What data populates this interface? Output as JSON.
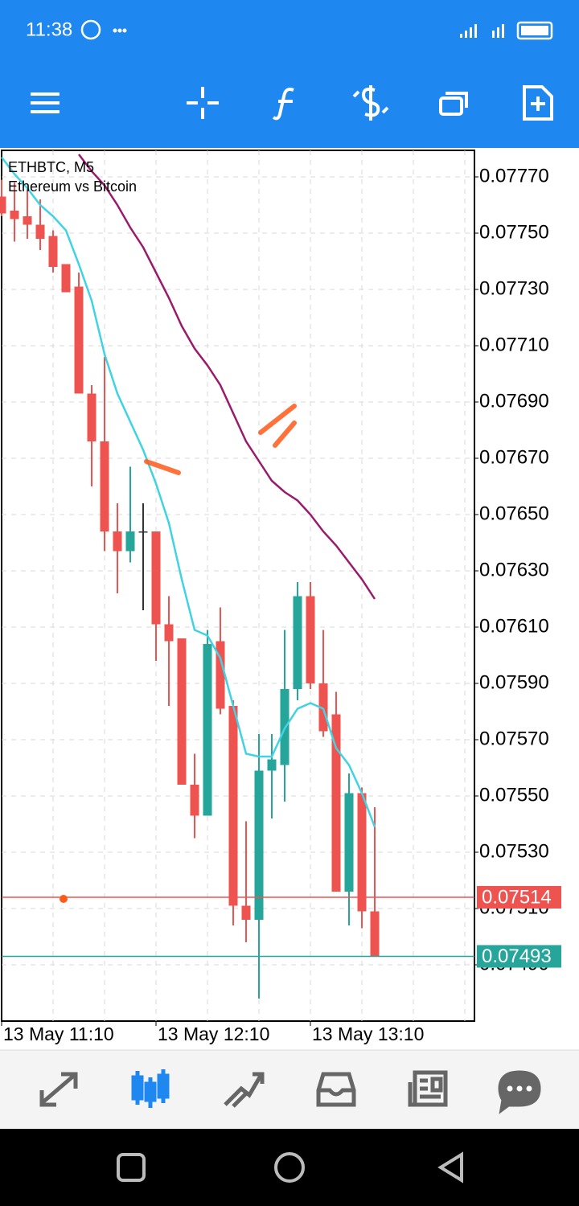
{
  "status_bar": {
    "time": "11:38"
  },
  "chart_data": {
    "type": "candlestick",
    "title": "ETHBTC, M5",
    "subtitle": "Ethereum vs Bitcoin",
    "categories": [
      "13 May 11:10",
      null,
      null,
      null,
      null,
      null,
      null,
      null,
      null,
      null,
      null,
      null,
      "13 May 12:10",
      null,
      null,
      null,
      null,
      null,
      null,
      null,
      null,
      null,
      null,
      null,
      "13 May 13:10",
      null,
      null,
      null,
      null,
      null
    ],
    "open": [
      0.07763,
      0.07758,
      0.07756,
      0.07753,
      0.07749,
      0.07739,
      0.07731,
      0.07693,
      0.07676,
      0.07644,
      0.07637,
      0.07644,
      0.07644,
      0.07611,
      0.07606,
      0.07554,
      0.07543,
      0.07605,
      0.07582,
      0.07511,
      0.07506,
      0.07559,
      0.07561,
      0.07588,
      0.07621,
      0.0759,
      0.07579,
      0.07516,
      0.07551,
      0.07509
    ],
    "high": [
      0.07769,
      0.07768,
      0.07766,
      0.07762,
      0.07751,
      0.07739,
      0.07736,
      0.07696,
      0.07706,
      0.07654,
      0.07667,
      0.07654,
      0.07644,
      0.07621,
      0.07606,
      0.07565,
      0.07609,
      0.07617,
      0.07584,
      0.07541,
      0.07572,
      0.07572,
      0.07609,
      0.07626,
      0.07626,
      0.07609,
      0.07587,
      0.07558,
      0.07553,
      0.07546
    ],
    "low": [
      0.07756,
      0.07747,
      0.07748,
      0.07744,
      0.07736,
      0.07729,
      0.07693,
      0.0766,
      0.07637,
      0.07622,
      0.07633,
      0.07616,
      0.07598,
      0.07582,
      0.07554,
      0.07535,
      0.07543,
      0.07579,
      0.07504,
      0.07498,
      0.07478,
      0.07542,
      0.07548,
      0.07584,
      0.07588,
      0.07571,
      0.07516,
      0.07504,
      0.07503,
      0.07493
    ],
    "close": [
      0.07757,
      0.07755,
      0.07753,
      0.07748,
      0.07738,
      0.07729,
      0.07693,
      0.07676,
      0.07644,
      0.07637,
      0.07644,
      0.07644,
      0.07611,
      0.07605,
      0.07554,
      0.07543,
      0.07604,
      0.07581,
      0.07511,
      0.07506,
      0.07559,
      0.07563,
      0.07588,
      0.07621,
      0.0759,
      0.07573,
      0.07516,
      0.07551,
      0.07509,
      0.07493
    ],
    "up_color": "#26a69a",
    "down_color": "#ef5350",
    "lines": [
      {
        "color": "#3fd3e3",
        "values": [
          0.07777,
          0.07771,
          0.07766,
          0.0776,
          0.07756,
          0.07751,
          0.07739,
          0.07726,
          0.07707,
          0.07693,
          0.07683,
          0.07673,
          0.07661,
          0.07647,
          0.07627,
          0.07609,
          0.07607,
          0.07599,
          0.07582,
          0.07565,
          0.07564,
          0.07564,
          0.07574,
          0.07581,
          0.07583,
          0.07581,
          0.07567,
          0.07561,
          0.07551,
          0.07539
        ]
      },
      {
        "color": "#9b1b6b",
        "values": [
          null,
          null,
          null,
          null,
          null,
          null,
          0.07778,
          0.07772,
          0.07767,
          0.0776,
          0.07752,
          0.07745,
          0.07736,
          0.07727,
          0.07717,
          0.07709,
          0.07703,
          0.07696,
          0.07686,
          0.07676,
          0.07669,
          0.07662,
          0.07658,
          0.07655,
          0.0765,
          0.07644,
          0.07639,
          0.07633,
          0.07627,
          0.0762
        ]
      }
    ],
    "price_lines": [
      {
        "value": 0.07514,
        "color": "#ef5350"
      },
      {
        "value": 0.07493,
        "color": "#26a69a"
      }
    ],
    "ylim": [
      0.0747,
      0.0778
    ],
    "yticks": [
      {
        "value": 0.0777,
        "label": "0.07770"
      },
      {
        "value": 0.0775,
        "label": "0.07750"
      },
      {
        "value": 0.0773,
        "label": "0.07730"
      },
      {
        "value": 0.0771,
        "label": "0.07710"
      },
      {
        "value": 0.0769,
        "label": "0.07690"
      },
      {
        "value": 0.0767,
        "label": "0.07670"
      },
      {
        "value": 0.0765,
        "label": "0.07650"
      },
      {
        "value": 0.0763,
        "label": "0.07630"
      },
      {
        "value": 0.0761,
        "label": "0.07610"
      },
      {
        "value": 0.0759,
        "label": "0.07590"
      },
      {
        "value": 0.0757,
        "label": "0.07570"
      },
      {
        "value": 0.0755,
        "label": "0.07550"
      },
      {
        "value": 0.0753,
        "label": "0.07530"
      },
      {
        "value": 0.0751,
        "label": "0.07510"
      },
      {
        "value": 0.0749,
        "label": "0.07490"
      }
    ],
    "grid": true
  }
}
